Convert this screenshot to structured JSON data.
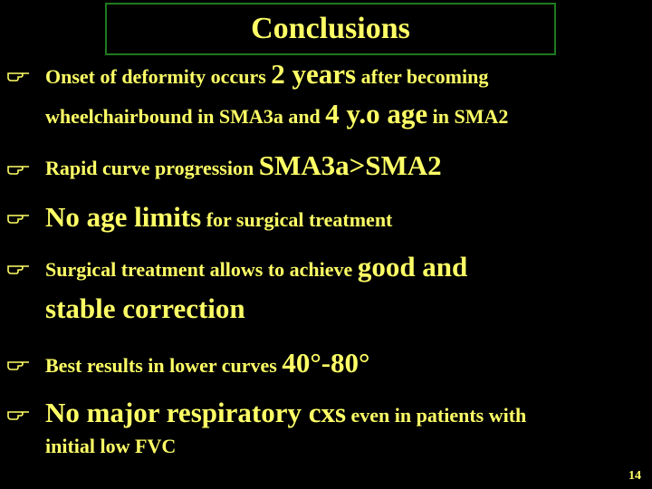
{
  "slide": {
    "title": "Conclusions",
    "bullets": [
      {
        "line1": [
          "Onset of deformity occurs ",
          "2 years",
          " after becoming"
        ],
        "line2": [
          "wheelchairbound in SMA3a and ",
          "4 y.o age",
          " in SMA2"
        ]
      },
      {
        "line1": [
          "Rapid curve progression ",
          "SMA3a>SMA2"
        ]
      },
      {
        "line1": [
          "No age limits",
          " for surgical treatment"
        ]
      },
      {
        "line1": [
          "Surgical treatment allows to achieve ",
          "good and"
        ],
        "line2": [
          "stable correction"
        ]
      },
      {
        "line1": [
          "Best results in lower curves ",
          "40°-80°"
        ]
      },
      {
        "line1": [
          "No major respiratory cxs",
          " even in patients with"
        ],
        "line2": [
          "initial low FVC"
        ]
      }
    ],
    "page_number": "14"
  },
  "colors": {
    "background": "#000000",
    "text": "#ffff66",
    "title_border": "#1f7a1f"
  }
}
